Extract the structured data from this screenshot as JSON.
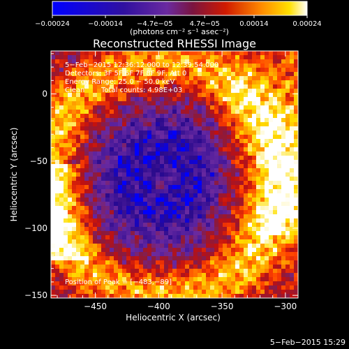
{
  "chart_data": {
    "type": "heatmap",
    "title": "Reconstructed RHESSI Image",
    "xlabel": "Heliocentric X (arcsec)",
    "ylabel": "Heliocentric Y (arcsec)",
    "xlim": [
      -485,
      -290
    ],
    "ylim": [
      -152,
      32
    ],
    "xticks": [
      -450,
      -400,
      -350,
      -300
    ],
    "xtick_labels": [
      "−450",
      "−400",
      "−350",
      "−300"
    ],
    "yticks": [
      -150,
      -100,
      -50,
      0
    ],
    "ytick_labels": [
      "−150",
      "−100",
      "−50",
      "0"
    ],
    "colorbar": {
      "range": [
        -0.00024,
        0.00024
      ],
      "ticks": [
        -0.00024,
        -0.00014,
        -4.7e-05,
        4.7e-05,
        0.00014,
        0.00024
      ],
      "tick_labels": [
        "−0.00024",
        "−0.00014",
        "−4.7e−05",
        "4.7e−05",
        "0.00014",
        "0.00024"
      ],
      "unit": "(photons cm⁻² s⁻¹ asec⁻²)"
    },
    "colormap": [
      "#0000ff",
      "#2a0a8c",
      "#4a1a9a",
      "#6a2aa0",
      "#8c1a3c",
      "#c01010",
      "#ff4000",
      "#ff9a00",
      "#ffe000",
      "#ffffff"
    ],
    "annotations": {
      "time": "5−Feb−2015 12:36:12.000 to 12:39:54.000",
      "detectors": "Detectors: 3F 5F 6F 7F 8F 9F, Att 0",
      "energy": "Energy Range: 25.0 − 50.0 keV",
      "clean": "Clean",
      "total_counts": "Total counts: 4.98E+03",
      "peak": "Position of Peak = [−483,−89]"
    },
    "peak_position": [
      -483,
      -89
    ]
  },
  "footer_timestamp": "5−Feb−2015 15:29"
}
